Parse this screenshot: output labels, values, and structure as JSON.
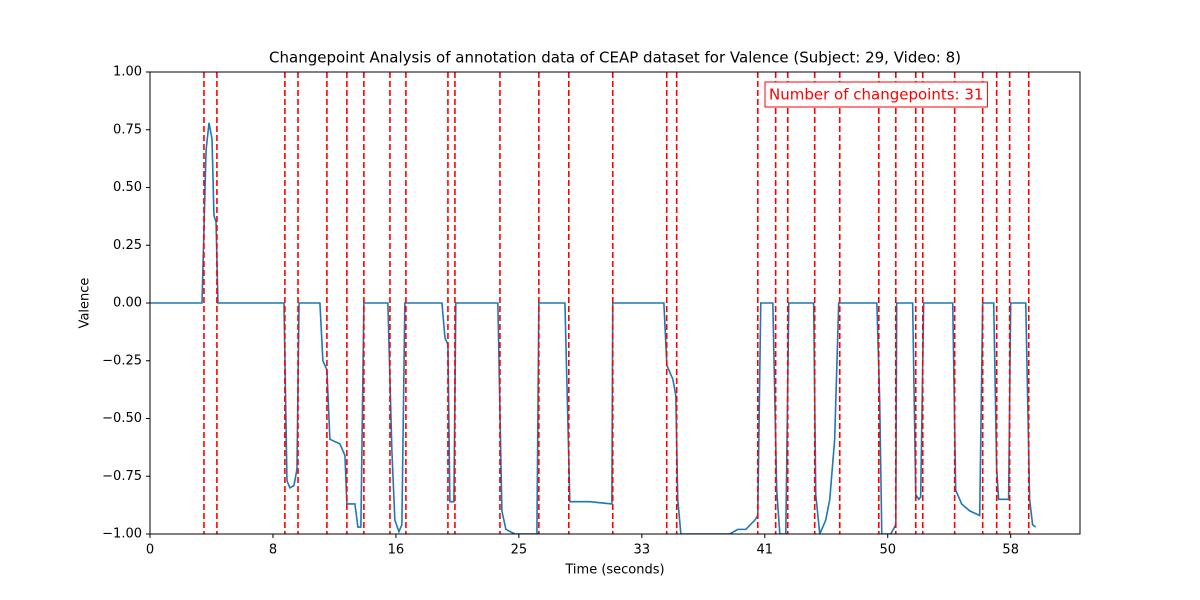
{
  "chart_data": {
    "type": "line",
    "title": "Changepoint Analysis of annotation data of CEAP dataset for Valence (Subject: 29, Video: 8)",
    "xlabel": "Time (seconds)",
    "ylabel": "Valence",
    "annotation": "Number of changepoints: 31",
    "x": [
      0,
      3.49,
      3.76,
      3.96,
      4.16,
      4.29,
      4.43,
      4.56,
      8.99,
      9.19,
      9.39,
      9.66,
      9.86,
      10.0,
      11.4,
      11.6,
      11.87,
      12.07,
      12.74,
      13.08,
      13.21,
      13.75,
      13.95,
      14.15,
      14.35,
      15.96,
      16.23,
      16.43,
      16.7,
      16.9,
      17.1,
      19.59,
      19.79,
      19.99,
      20.12,
      20.39,
      20.52,
      23.34,
      23.61,
      23.88,
      24.48,
      25.96,
      26.09,
      27.84,
      28.17,
      29.51,
      30.99,
      31.05,
      34.48,
      34.68,
      35.08,
      35.28,
      35.41,
      35.62,
      38.9,
      39.44,
      39.98,
      40.58,
      40.78,
      40.98,
      41.79,
      42.05,
      42.26,
      42.66,
      42.86,
      44.53,
      44.67,
      44.94,
      45.34,
      45.61,
      45.94,
      46.21,
      48.77,
      48.96,
      49.1,
      49.7,
      50.04,
      50.1,
      51.17,
      51.38,
      51.58,
      51.71,
      51.91,
      53.86,
      54.06,
      54.46,
      55.0,
      55.67,
      55.87,
      56.61,
      56.81,
      56.94,
      57.61,
      57.75,
      58.76,
      59.02,
      59.22,
      59.42
    ],
    "series": [
      {
        "name": "Valence",
        "color": "#1f77b4",
        "values": [
          0,
          0,
          0.66,
          0.78,
          0.71,
          0.38,
          0.35,
          0,
          0,
          -0.77,
          -0.8,
          -0.79,
          -0.72,
          0,
          0,
          -0.25,
          -0.29,
          -0.59,
          -0.61,
          -0.66,
          -0.87,
          -0.87,
          -0.97,
          -0.97,
          0,
          0,
          -0.64,
          -0.94,
          -0.99,
          -0.96,
          0,
          0,
          -0.15,
          -0.18,
          -0.86,
          -0.86,
          0,
          0,
          -0.9,
          -0.98,
          -1.0,
          -1.0,
          0,
          0,
          -0.86,
          -0.86,
          -0.87,
          0,
          0,
          -0.27,
          -0.33,
          -0.4,
          -0.85,
          -1.0,
          -1.0,
          -0.98,
          -0.98,
          -0.94,
          -0.92,
          0,
          0,
          -0.81,
          -1.0,
          -1.0,
          0,
          0,
          -0.83,
          -1.0,
          -0.94,
          -0.85,
          -0.59,
          0,
          0,
          -0.42,
          -1.0,
          -1.0,
          -0.96,
          0,
          0,
          -0.83,
          -0.85,
          -0.84,
          0,
          0,
          -0.81,
          -0.87,
          -0.9,
          -0.92,
          0,
          0,
          -0.72,
          -0.85,
          -0.85,
          0,
          0,
          -0.85,
          -0.96,
          -0.97
        ]
      }
    ],
    "changepoints": [
      3.62,
      4.49,
      9.05,
      9.93,
      11.87,
      13.21,
      14.35,
      16.1,
      17.17,
      19.99,
      20.46,
      23.48,
      26.09,
      28.1,
      31.05,
      34.67,
      35.34,
      40.78,
      41.98,
      42.79,
      44.6,
      46.28,
      48.9,
      50.04,
      51.38,
      51.85,
      53.99,
      55.87,
      56.81,
      57.68,
      58.96
    ],
    "changepoint_color": "#ff0000",
    "xlim": [
      0,
      62.4
    ],
    "ylim": [
      -1,
      1
    ],
    "xticks": [
      0,
      {
        "value": 8.25,
        "label": "8"
      },
      {
        "value": 16.5,
        "label": "16"
      },
      {
        "value": 24.75,
        "label": "25"
      },
      33,
      {
        "value": 41.25,
        "label": "41"
      },
      {
        "value": 49.5,
        "label": "50"
      },
      {
        "value": 57.75,
        "label": "58"
      }
    ],
    "yticks": [
      {
        "value": -1,
        "label": "−1.00"
      },
      {
        "value": -0.75,
        "label": "−0.75"
      },
      {
        "value": -0.5,
        "label": "−0.50"
      },
      {
        "value": -0.25,
        "label": "−0.25"
      },
      {
        "value": 0,
        "label": "0.00"
      },
      {
        "value": 0.25,
        "label": "0.25"
      },
      {
        "value": 0.5,
        "label": "0.50"
      },
      {
        "value": 0.75,
        "label": "0.75"
      },
      {
        "value": 1,
        "label": "1.00"
      }
    ]
  }
}
